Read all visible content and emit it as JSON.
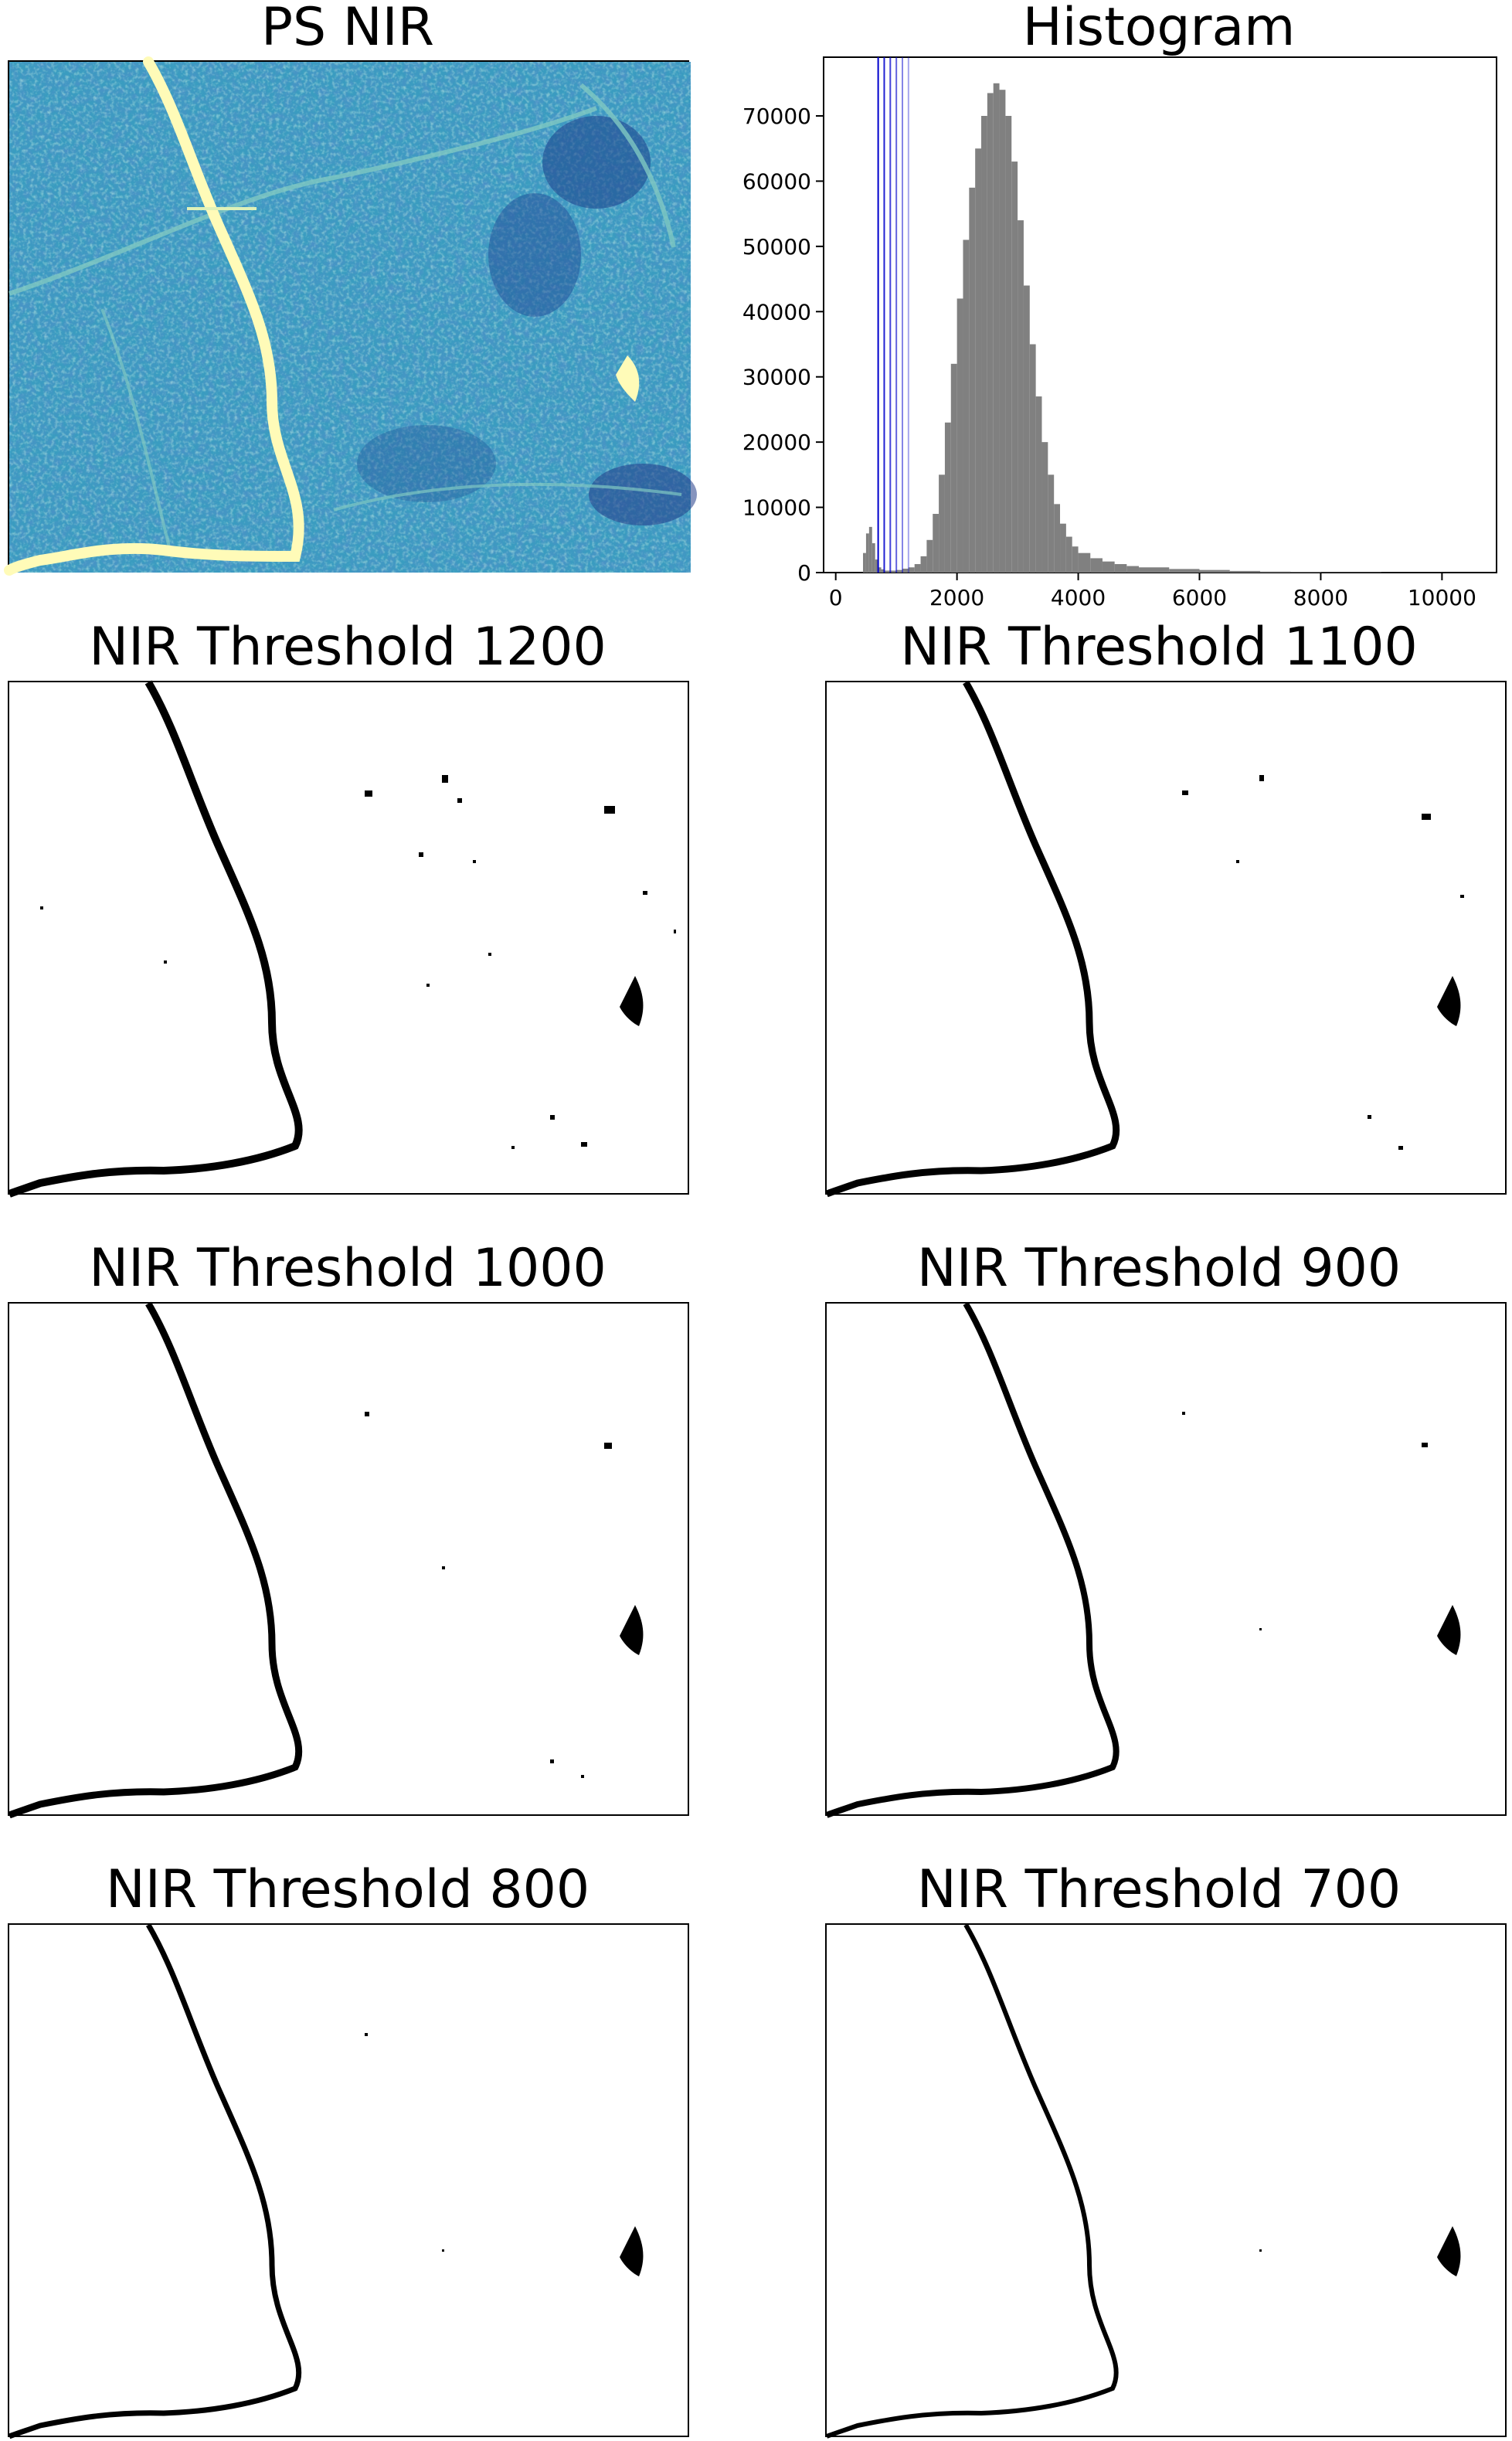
{
  "panels": {
    "ps_nir": {
      "title": "PS NIR",
      "colormap": "YlGnBu_r"
    },
    "histogram": {
      "title": "Histogram"
    },
    "thresholds": [
      {
        "title": "NIR Threshold 1200",
        "threshold": 1200
      },
      {
        "title": "NIR Threshold 1100",
        "threshold": 1100
      },
      {
        "title": "NIR Threshold 1000",
        "threshold": 1000
      },
      {
        "title": "NIR Threshold 900",
        "threshold": 900
      },
      {
        "title": "NIR Threshold 800",
        "threshold": 800
      },
      {
        "title": "NIR Threshold 700",
        "threshold": 700
      }
    ]
  },
  "chart_data": [
    {
      "type": "bar",
      "title": "Histogram",
      "xlim": [
        -200,
        10900
      ],
      "ylim": [
        0,
        79000
      ],
      "xticks": [
        0,
        2000,
        4000,
        6000,
        8000,
        10000
      ],
      "yticks": [
        0,
        10000,
        20000,
        30000,
        40000,
        50000,
        60000,
        70000
      ],
      "bar_color": "#808080",
      "threshold_lines": [
        700,
        800,
        900,
        1000,
        1100,
        1200
      ],
      "line_color": "#0000cc",
      "bins": [
        [
          450,
          3000
        ],
        [
          500,
          6000
        ],
        [
          550,
          7000
        ],
        [
          600,
          4500
        ],
        [
          650,
          2000
        ],
        [
          700,
          800
        ],
        [
          750,
          500
        ],
        [
          800,
          300
        ],
        [
          900,
          300
        ],
        [
          1000,
          400
        ],
        [
          1100,
          600
        ],
        [
          1200,
          800
        ],
        [
          1300,
          1300
        ],
        [
          1400,
          2500
        ],
        [
          1500,
          5000
        ],
        [
          1600,
          9000
        ],
        [
          1700,
          15000
        ],
        [
          1800,
          23000
        ],
        [
          1900,
          32000
        ],
        [
          2000,
          42000
        ],
        [
          2100,
          51000
        ],
        [
          2200,
          59000
        ],
        [
          2300,
          65000
        ],
        [
          2400,
          70000
        ],
        [
          2500,
          73500
        ],
        [
          2600,
          75000
        ],
        [
          2700,
          74000
        ],
        [
          2800,
          70000
        ],
        [
          2900,
          63000
        ],
        [
          3000,
          54000
        ],
        [
          3100,
          44000
        ],
        [
          3200,
          35000
        ],
        [
          3300,
          27000
        ],
        [
          3400,
          20000
        ],
        [
          3500,
          15000
        ],
        [
          3600,
          10500
        ],
        [
          3700,
          7500
        ],
        [
          3800,
          5500
        ],
        [
          3900,
          4000
        ],
        [
          4000,
          3000
        ],
        [
          4200,
          2200
        ],
        [
          4400,
          1700
        ],
        [
          4600,
          1300
        ],
        [
          4800,
          1000
        ],
        [
          5000,
          800
        ],
        [
          5500,
          550
        ],
        [
          6000,
          400
        ],
        [
          6500,
          250
        ],
        [
          7000,
          150
        ],
        [
          7500,
          100
        ],
        [
          8000,
          60
        ],
        [
          9000,
          30
        ],
        [
          10000,
          15
        ]
      ]
    }
  ]
}
